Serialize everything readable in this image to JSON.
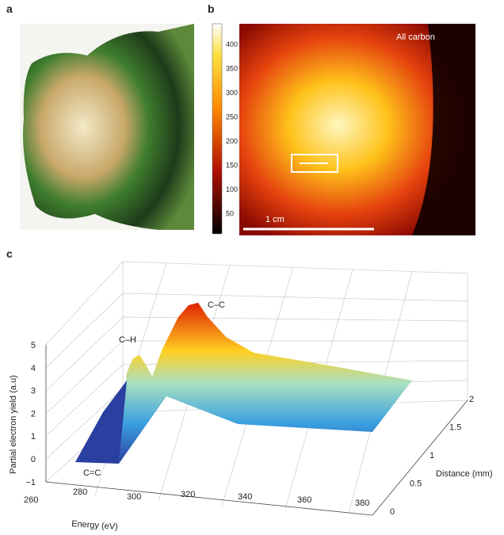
{
  "panel_a": {
    "label": "a"
  },
  "panel_b": {
    "label": "b",
    "colorbar_ticks": [
      "400",
      "350",
      "300",
      "250",
      "200",
      "150",
      "100",
      "50"
    ],
    "annotation": "All carbon",
    "scale_bar": "1 cm"
  },
  "panel_c": {
    "label": "c",
    "z_title": "Partial electron yield (a.u)",
    "z_ticks": [
      "5",
      "4",
      "3",
      "2",
      "1",
      "0",
      "−1"
    ],
    "x_title": "Energy (eV)",
    "x_ticks": [
      "260",
      "280",
      "300",
      "320",
      "340",
      "360",
      "380"
    ],
    "y_title": "Distance (mm)",
    "y_ticks": [
      "0",
      "0.5",
      "1",
      "1.5",
      "2"
    ],
    "peaks": [
      "C–H",
      "C–C",
      "C=C"
    ]
  }
}
